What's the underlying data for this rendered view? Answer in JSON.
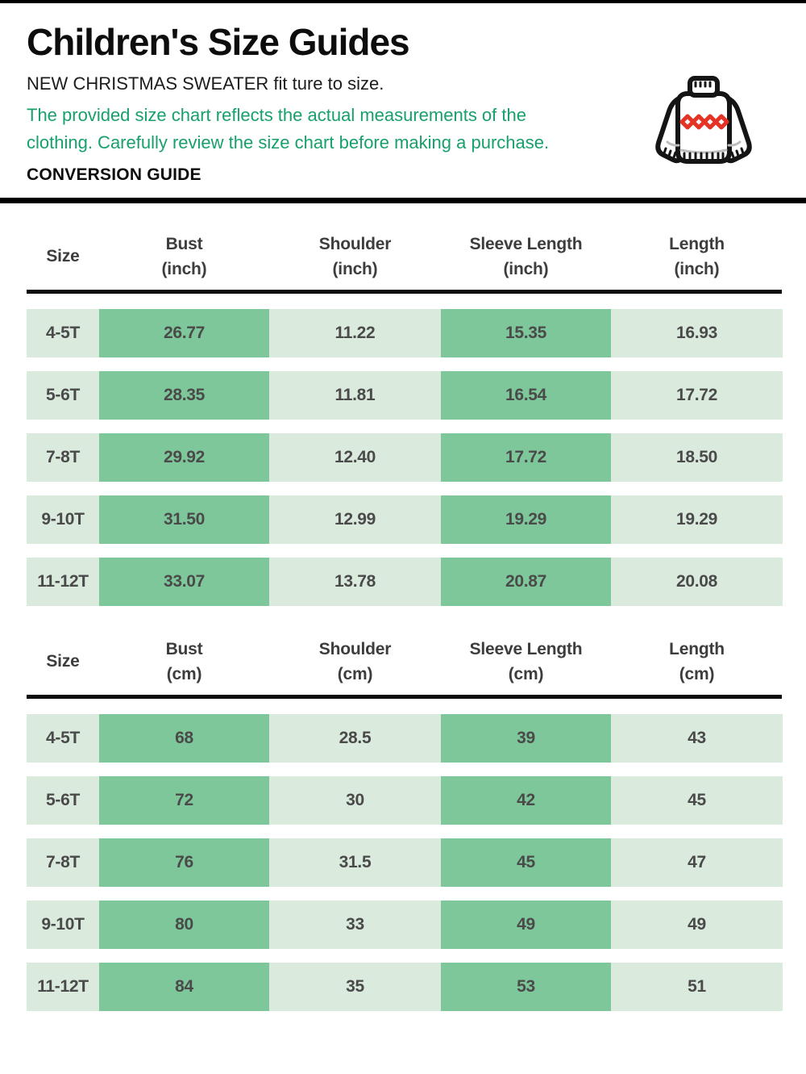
{
  "page": {
    "title": "Children's Size Guides",
    "subtitle": "NEW CHRISTMAS SWEATER fit ture to size.",
    "description": "The provided size chart reflects the actual measurements of the clothing. Carefully review the size chart before making a purchase.",
    "section_label": "CONVERSION GUIDE"
  },
  "colors": {
    "accent_green_text": "#18a06b",
    "cell_dark_green": "#7ec79a",
    "cell_light_green": "#daeadd",
    "divider_black": "#000000",
    "sweater_outline": "#151515",
    "sweater_diamond_red": "#e43225"
  },
  "icon": {
    "name": "christmas-sweater-icon"
  },
  "tables": [
    {
      "unit_label": "inch",
      "headers": [
        {
          "line1": "Size",
          "line2": ""
        },
        {
          "line1": "Bust",
          "line2": "(inch)"
        },
        {
          "line1": "Shoulder",
          "line2": "(inch)"
        },
        {
          "line1": "Sleeve Length",
          "line2": "(inch)"
        },
        {
          "line1": "Length",
          "line2": "(inch)"
        }
      ],
      "rows": [
        [
          "4-5T",
          "26.77",
          "11.22",
          "15.35",
          "16.93"
        ],
        [
          "5-6T",
          "28.35",
          "11.81",
          "16.54",
          "17.72"
        ],
        [
          "7-8T",
          "29.92",
          "12.40",
          "17.72",
          "18.50"
        ],
        [
          "9-10T",
          "31.50",
          "12.99",
          "19.29",
          "19.29"
        ],
        [
          "11-12T",
          "33.07",
          "13.78",
          "20.87",
          "20.08"
        ]
      ]
    },
    {
      "unit_label": "cm",
      "headers": [
        {
          "line1": "Size",
          "line2": ""
        },
        {
          "line1": "Bust",
          "line2": "(cm)"
        },
        {
          "line1": "Shoulder",
          "line2": "(cm)"
        },
        {
          "line1": "Sleeve Length",
          "line2": "(cm)"
        },
        {
          "line1": "Length",
          "line2": "(cm)"
        }
      ],
      "rows": [
        [
          "4-5T",
          "68",
          "28.5",
          "39",
          "43"
        ],
        [
          "5-6T",
          "72",
          "30",
          "42",
          "45"
        ],
        [
          "7-8T",
          "76",
          "31.5",
          "45",
          "47"
        ],
        [
          "9-10T",
          "80",
          "33",
          "49",
          "49"
        ],
        [
          "11-12T",
          "84",
          "35",
          "53",
          "51"
        ]
      ]
    }
  ]
}
